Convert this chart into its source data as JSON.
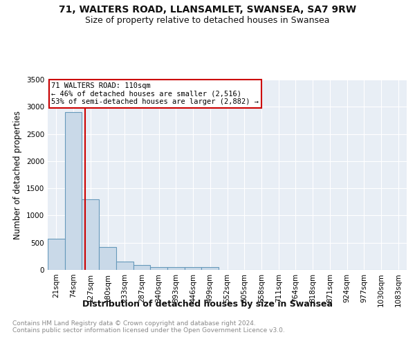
{
  "title1": "71, WALTERS ROAD, LLANSAMLET, SWANSEA, SA7 9RW",
  "title2": "Size of property relative to detached houses in Swansea",
  "xlabel": "Distribution of detached houses by size in Swansea",
  "ylabel": "Number of detached properties",
  "footnote": "Contains HM Land Registry data © Crown copyright and database right 2024.\nContains public sector information licensed under the Open Government Licence v3.0.",
  "bin_labels": [
    "21sqm",
    "74sqm",
    "127sqm",
    "180sqm",
    "233sqm",
    "287sqm",
    "340sqm",
    "393sqm",
    "446sqm",
    "499sqm",
    "552sqm",
    "605sqm",
    "658sqm",
    "711sqm",
    "764sqm",
    "818sqm",
    "871sqm",
    "924sqm",
    "977sqm",
    "1030sqm",
    "1083sqm"
  ],
  "bar_values": [
    575,
    2900,
    1300,
    420,
    155,
    85,
    50,
    45,
    45,
    45,
    0,
    0,
    0,
    0,
    0,
    0,
    0,
    0,
    0,
    0,
    0
  ],
  "bar_color": "#c9d9e8",
  "bar_edge_color": "#6699bb",
  "bar_edge_width": 0.8,
  "property_line_color": "#cc0000",
  "annotation_text": "71 WALTERS ROAD: 110sqm\n← 46% of detached houses are smaller (2,516)\n53% of semi-detached houses are larger (2,882) →",
  "annotation_box_color": "#ffffff",
  "annotation_box_edge": "#cc0000",
  "ylim": [
    0,
    3500
  ],
  "yticks": [
    0,
    500,
    1000,
    1500,
    2000,
    2500,
    3000,
    3500
  ],
  "background_color": "#e8eef5",
  "grid_color": "#ffffff",
  "title1_fontsize": 10,
  "title2_fontsize": 9,
  "ylabel_fontsize": 8.5,
  "xlabel_fontsize": 9,
  "annotation_fontsize": 7.5,
  "footnote_fontsize": 6.5,
  "tick_fontsize": 7.5
}
